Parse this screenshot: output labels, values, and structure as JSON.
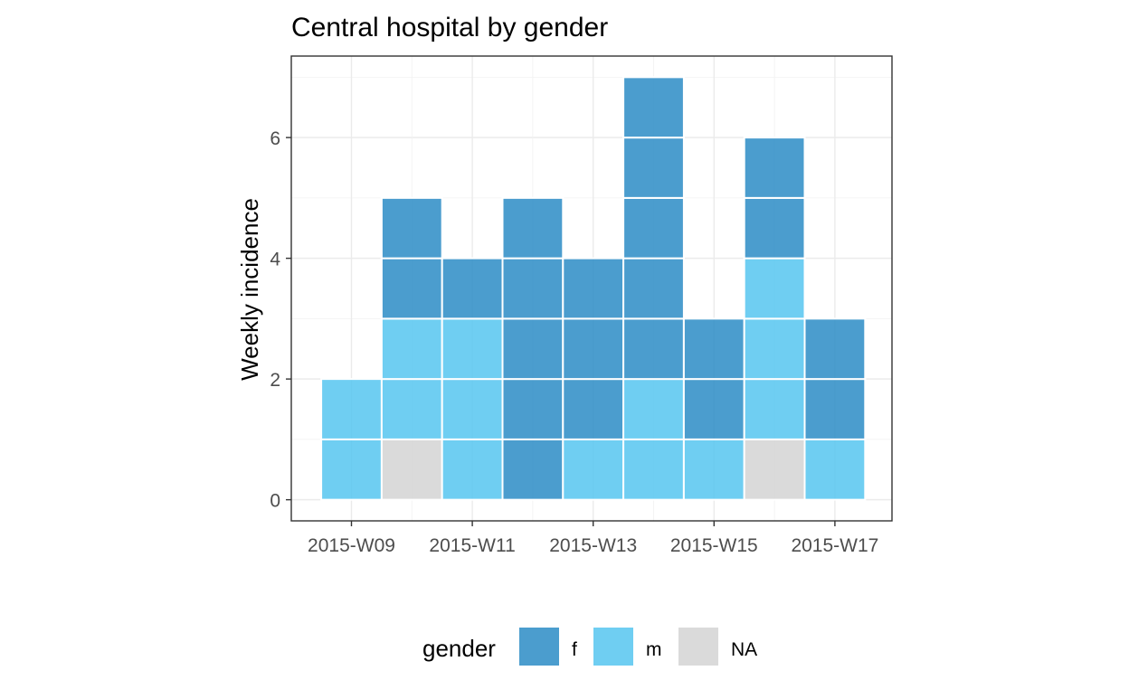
{
  "chart_data": {
    "type": "bar",
    "stacked": true,
    "title": "Central hospital by gender",
    "xlabel": "",
    "ylabel": "Weekly incidence",
    "categories": [
      "2015-W09",
      "2015-W10",
      "2015-W11",
      "2015-W12",
      "2015-W13",
      "2015-W14",
      "2015-W15",
      "2015-W16",
      "2015-W17"
    ],
    "x_tick_labels": [
      "2015-W09",
      "2015-W11",
      "2015-W13",
      "2015-W15",
      "2015-W17"
    ],
    "y_ticks": [
      0,
      2,
      4,
      6
    ],
    "ylim": [
      -0.35,
      7.35
    ],
    "grid": true,
    "legend": {
      "title": "gender",
      "position": "bottom"
    },
    "series": [
      {
        "name": "NA",
        "color": "#d3d3d3",
        "values": [
          0,
          1,
          0,
          0,
          0,
          0,
          0,
          1,
          0
        ]
      },
      {
        "name": "m",
        "color": "#56c5f0",
        "values": [
          2,
          2,
          3,
          0,
          1,
          2,
          1,
          3,
          1
        ]
      },
      {
        "name": "f",
        "color": "#2b8cc6",
        "values": [
          0,
          2,
          1,
          5,
          3,
          5,
          2,
          2,
          2
        ]
      }
    ],
    "legend_order": [
      "f",
      "m",
      "NA"
    ]
  }
}
